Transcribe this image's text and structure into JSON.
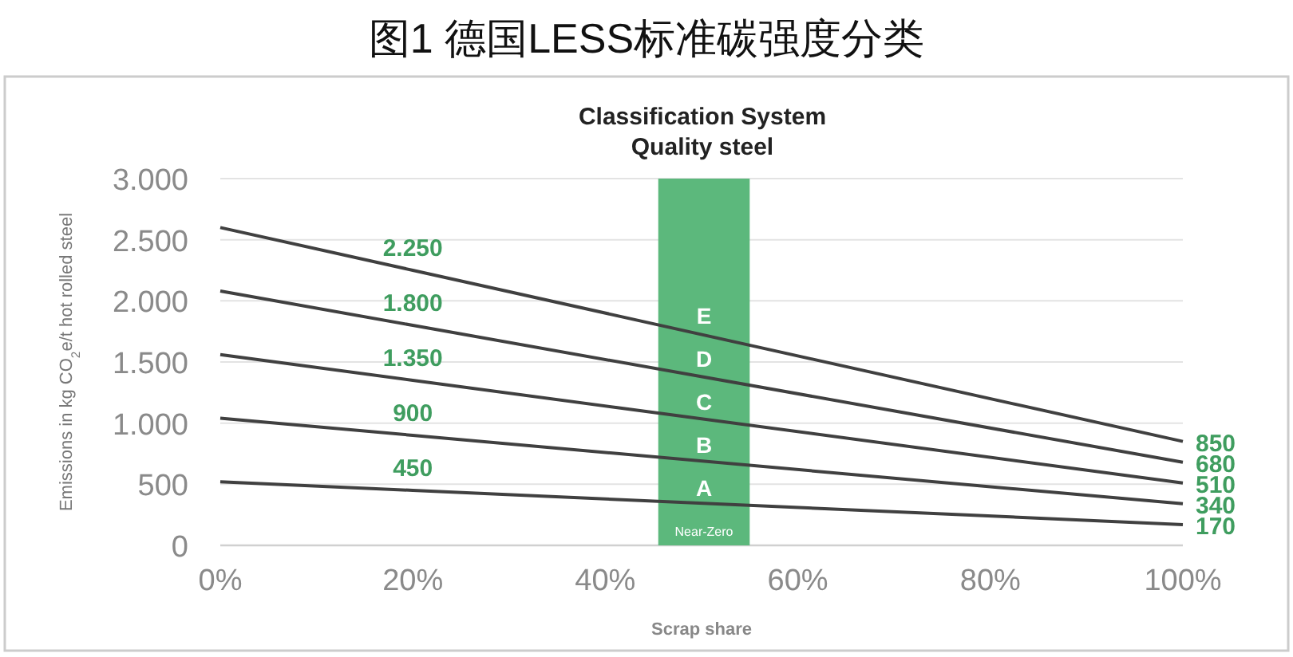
{
  "chart_data": {
    "type": "line",
    "title": "图1  德国LESS标准碳强度分类",
    "subtitle": "Classification System\nQuality steel",
    "xlabel": "Scrap share",
    "ylabel": "Emissions in kg CO$_{2}$e/t hot rolled steel",
    "x": [
      0,
      20,
      100
    ],
    "series": [
      {
        "color": "#404040",
        "values": [
          2600,
          2250,
          850
        ],
        "value_labels": [
          null,
          "2.250",
          "850"
        ]
      },
      {
        "color": "#404040",
        "values": [
          2080,
          1800,
          680
        ],
        "value_labels": [
          null,
          "1.800",
          "680"
        ]
      },
      {
        "color": "#404040",
        "values": [
          1560,
          1350,
          510
        ],
        "value_labels": [
          null,
          "1.350",
          "510"
        ]
      },
      {
        "color": "#404040",
        "values": [
          1040,
          900,
          340
        ],
        "value_labels": [
          null,
          "900",
          "340"
        ]
      },
      {
        "color": "#404040",
        "values": [
          520,
          450,
          170
        ],
        "value_labels": [
          null,
          "450",
          "170"
        ]
      }
    ],
    "xlim": [
      0,
      100
    ],
    "ylim": [
      0,
      3000
    ],
    "xticks": [
      {
        "value": 0,
        "label": "0%"
      },
      {
        "value": 20,
        "label": "20%"
      },
      {
        "value": 40,
        "label": "40%"
      },
      {
        "value": 60,
        "label": "60%"
      },
      {
        "value": 80,
        "label": "80%"
      },
      {
        "value": 100,
        "label": "100%"
      }
    ],
    "yticks": [
      {
        "value": 0,
        "label": "0"
      },
      {
        "value": 500,
        "label": "500"
      },
      {
        "value": 1000,
        "label": "1.000"
      },
      {
        "value": 1500,
        "label": "1.500"
      },
      {
        "value": 2000,
        "label": "2.000"
      },
      {
        "value": 2500,
        "label": "2.500"
      },
      {
        "value": 3000,
        "label": "3.000"
      }
    ],
    "bands": [
      {
        "axis": "x",
        "from": 45.5,
        "to": 55,
        "label": "Near-Zero",
        "color": "#5cb87c"
      }
    ],
    "annotations": [
      "E",
      "D",
      "C",
      "B",
      "A"
    ],
    "grid": "y",
    "marker": "none",
    "line_style": "solid"
  }
}
